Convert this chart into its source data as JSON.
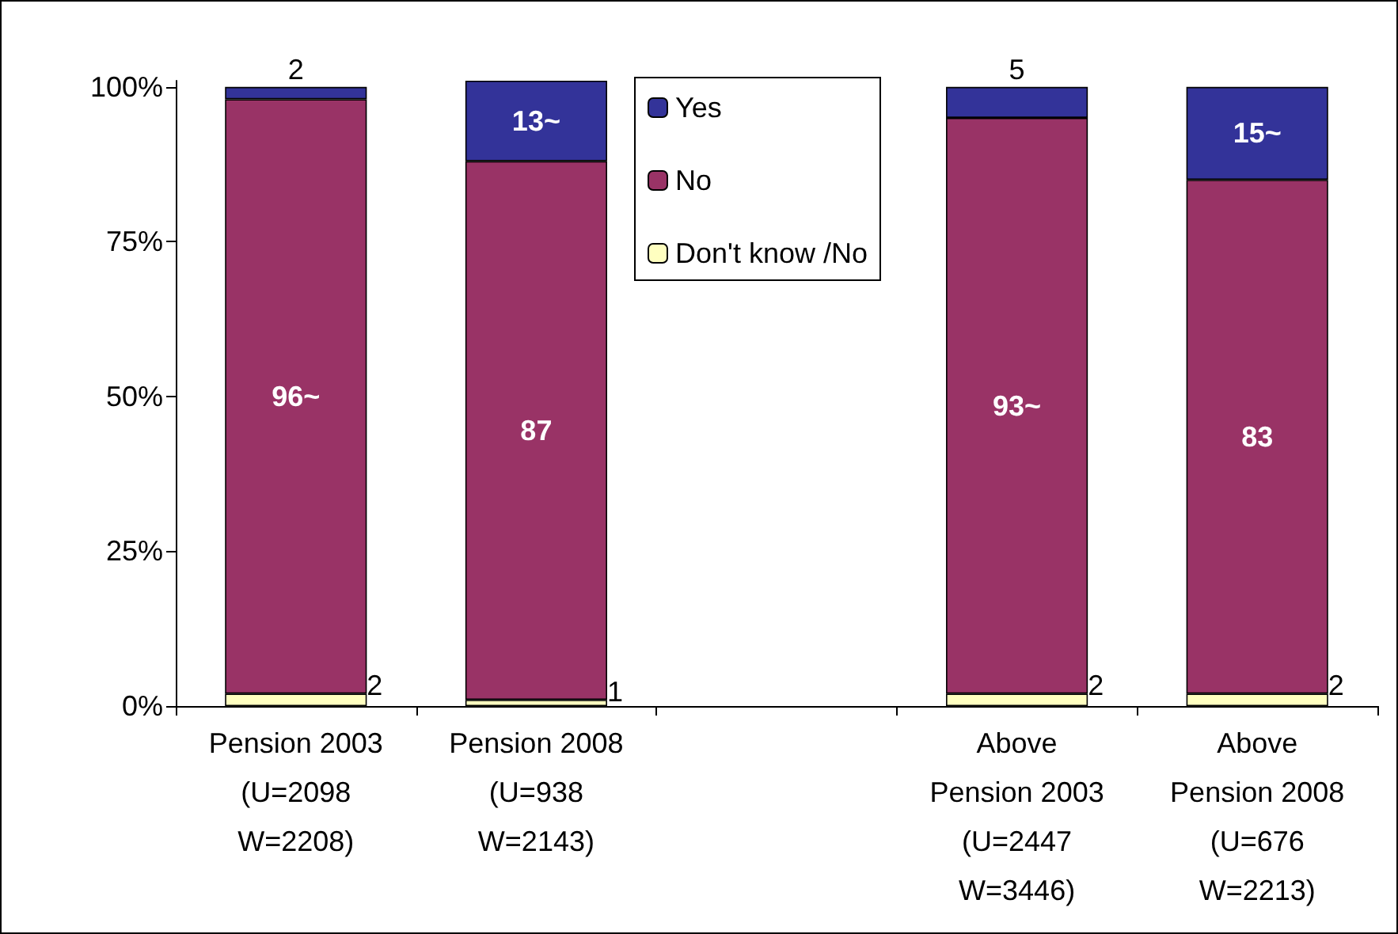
{
  "chart_data": {
    "type": "bar",
    "stacked": true,
    "categories": [
      "Pension 2003\n(U=2098\nW=2208)",
      "Pension 2008\n(U=938\nW=2143)",
      null,
      "Above\nPension 2003\n(U=2447\nW=3446)",
      "Above\nPension 2008\n(U=676\nW=2213)"
    ],
    "series": [
      {
        "name": "Don't know /No",
        "color": "#ffffc0",
        "values": [
          2,
          1,
          null,
          2,
          2
        ],
        "value_labels": [
          "2",
          "1",
          null,
          "2",
          "2"
        ]
      },
      {
        "name": "No",
        "color": "#993366",
        "values": [
          96,
          87,
          null,
          93,
          83
        ],
        "value_labels": [
          "96~",
          "87",
          null,
          "93~",
          "83"
        ]
      },
      {
        "name": "Yes",
        "color": "#333399",
        "values": [
          2,
          13,
          null,
          5,
          15
        ],
        "value_labels": [
          "2",
          "13~",
          null,
          "5",
          "15~"
        ]
      }
    ],
    "ylim": [
      0,
      101
    ],
    "yticks": [
      {
        "value": 0,
        "label": "0%"
      },
      {
        "value": 25,
        "label": "25%"
      },
      {
        "value": 50,
        "label": "50%"
      },
      {
        "value": 75,
        "label": "75%"
      },
      {
        "value": 100,
        "label": "100%"
      }
    ],
    "grid": false,
    "legend": "top"
  }
}
